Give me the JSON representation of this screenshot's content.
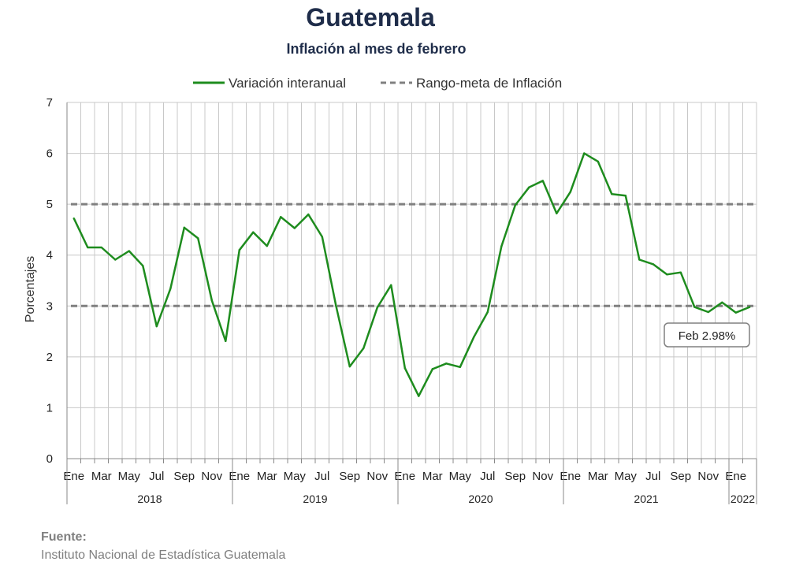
{
  "header": {
    "title": "Guatemala",
    "subtitle": "Inflación al mes de febrero"
  },
  "footer": {
    "source_label": "Fuente:",
    "source_text": "Instituto Nacional de Estadística Guatemala"
  },
  "colors": {
    "series": "#1e8c1e",
    "target": "#808080",
    "grid": "#c8c8c8"
  },
  "chart_data": {
    "type": "line",
    "title": "Guatemala",
    "subtitle": "Inflación al mes de febrero",
    "ylabel": "Porcentajes",
    "ylim": [
      0,
      7
    ],
    "yticks": [
      0,
      1,
      2,
      3,
      4,
      5,
      6,
      7
    ],
    "grid": true,
    "legend_position": "top",
    "x": [
      "2018-01",
      "2018-02",
      "2018-03",
      "2018-04",
      "2018-05",
      "2018-06",
      "2018-07",
      "2018-08",
      "2018-09",
      "2018-10",
      "2018-11",
      "2018-12",
      "2019-01",
      "2019-02",
      "2019-03",
      "2019-04",
      "2019-05",
      "2019-06",
      "2019-07",
      "2019-08",
      "2019-09",
      "2019-10",
      "2019-11",
      "2019-12",
      "2020-01",
      "2020-02",
      "2020-03",
      "2020-04",
      "2020-05",
      "2020-06",
      "2020-07",
      "2020-08",
      "2020-09",
      "2020-10",
      "2020-11",
      "2020-12",
      "2021-01",
      "2021-02",
      "2021-03",
      "2021-04",
      "2021-05",
      "2021-06",
      "2021-07",
      "2021-08",
      "2021-09",
      "2021-10",
      "2021-11",
      "2021-12",
      "2022-01",
      "2022-02"
    ],
    "tick_labels": [
      "Ene",
      "",
      "Mar",
      "",
      "May",
      "",
      "Jul",
      "",
      "Sep",
      "",
      "Nov",
      "",
      "Ene",
      "",
      "Mar",
      "",
      "May",
      "",
      "Jul",
      "",
      "Sep",
      "",
      "Nov",
      "",
      "Ene",
      "",
      "Mar",
      "",
      "May",
      "",
      "Jul",
      "",
      "Sep",
      "",
      "Nov",
      "",
      "Ene",
      "",
      "Mar",
      "",
      "May",
      "",
      "Jul",
      "",
      "Sep",
      "",
      "Nov",
      "",
      "Ene",
      ""
    ],
    "year_groups": [
      {
        "label": "2018",
        "start": 0,
        "end": 11
      },
      {
        "label": "2019",
        "start": 12,
        "end": 23
      },
      {
        "label": "2020",
        "start": 24,
        "end": 35
      },
      {
        "label": "2021",
        "start": 36,
        "end": 47
      },
      {
        "label": "2022",
        "start": 48,
        "end": 49
      }
    ],
    "series": [
      {
        "name": "Variación interanual",
        "values": [
          4.72,
          4.15,
          4.15,
          3.91,
          4.08,
          3.79,
          2.6,
          3.34,
          4.54,
          4.33,
          3.11,
          2.31,
          4.1,
          4.45,
          4.18,
          4.75,
          4.53,
          4.8,
          4.36,
          3.01,
          1.81,
          2.17,
          2.97,
          3.41,
          1.78,
          1.23,
          1.76,
          1.87,
          1.8,
          2.39,
          2.88,
          4.17,
          4.98,
          5.33,
          5.46,
          4.82,
          5.24,
          6.0,
          5.84,
          5.2,
          5.17,
          3.91,
          3.82,
          3.62,
          3.66,
          2.98,
          2.88,
          3.07,
          2.87,
          2.98
        ]
      },
      {
        "name": "Rango-meta de Inflación",
        "lines": [
          3,
          5
        ]
      }
    ],
    "annotation": {
      "text": "Feb 2.98%",
      "index": 49,
      "value": 2.98
    }
  }
}
